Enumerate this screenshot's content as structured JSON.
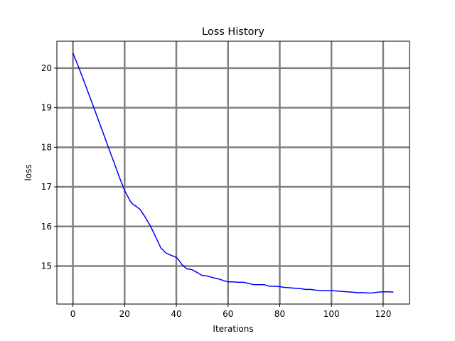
{
  "chart_data": {
    "type": "line",
    "title": "Loss History",
    "xlabel": "Iterations",
    "ylabel": "loss",
    "xlim": [
      -6.2,
      130.2
    ],
    "ylim": [
      14.04,
      20.68
    ],
    "x_ticks": [
      0,
      20,
      40,
      60,
      80,
      100,
      120
    ],
    "y_ticks": [
      15,
      16,
      17,
      18,
      19,
      20
    ],
    "grid": true,
    "grid_color": "#808080",
    "line_color": "#0000ff",
    "series": [
      {
        "x": [
          0,
          2,
          4,
          6,
          8,
          10,
          12,
          14,
          16,
          18,
          20,
          22,
          23,
          24,
          26,
          28,
          30,
          32,
          34,
          36,
          38,
          40,
          41,
          42,
          44,
          46,
          48,
          50,
          52,
          54,
          56,
          58,
          60,
          62,
          64,
          66,
          68,
          70,
          72,
          74,
          76,
          78,
          80,
          82,
          84,
          86,
          88,
          90,
          92,
          94,
          96,
          98,
          100,
          102,
          104,
          106,
          108,
          110,
          112,
          114,
          116,
          118,
          120,
          122,
          124
        ],
        "y": [
          20.38,
          20.06,
          19.72,
          19.37,
          19.02,
          18.66,
          18.31,
          17.95,
          17.6,
          17.24,
          16.91,
          16.66,
          16.57,
          16.53,
          16.43,
          16.23,
          16.01,
          15.74,
          15.46,
          15.33,
          15.27,
          15.22,
          15.15,
          15.05,
          14.93,
          14.91,
          14.84,
          14.76,
          14.75,
          14.71,
          14.68,
          14.64,
          14.6,
          14.6,
          14.59,
          14.59,
          14.56,
          14.53,
          14.53,
          14.53,
          14.49,
          14.49,
          14.48,
          14.46,
          14.45,
          14.44,
          14.43,
          14.41,
          14.41,
          14.39,
          14.38,
          14.38,
          14.38,
          14.37,
          14.36,
          14.35,
          14.34,
          14.33,
          14.33,
          14.32,
          14.32,
          14.34,
          14.35,
          14.35,
          14.34
        ]
      }
    ]
  }
}
